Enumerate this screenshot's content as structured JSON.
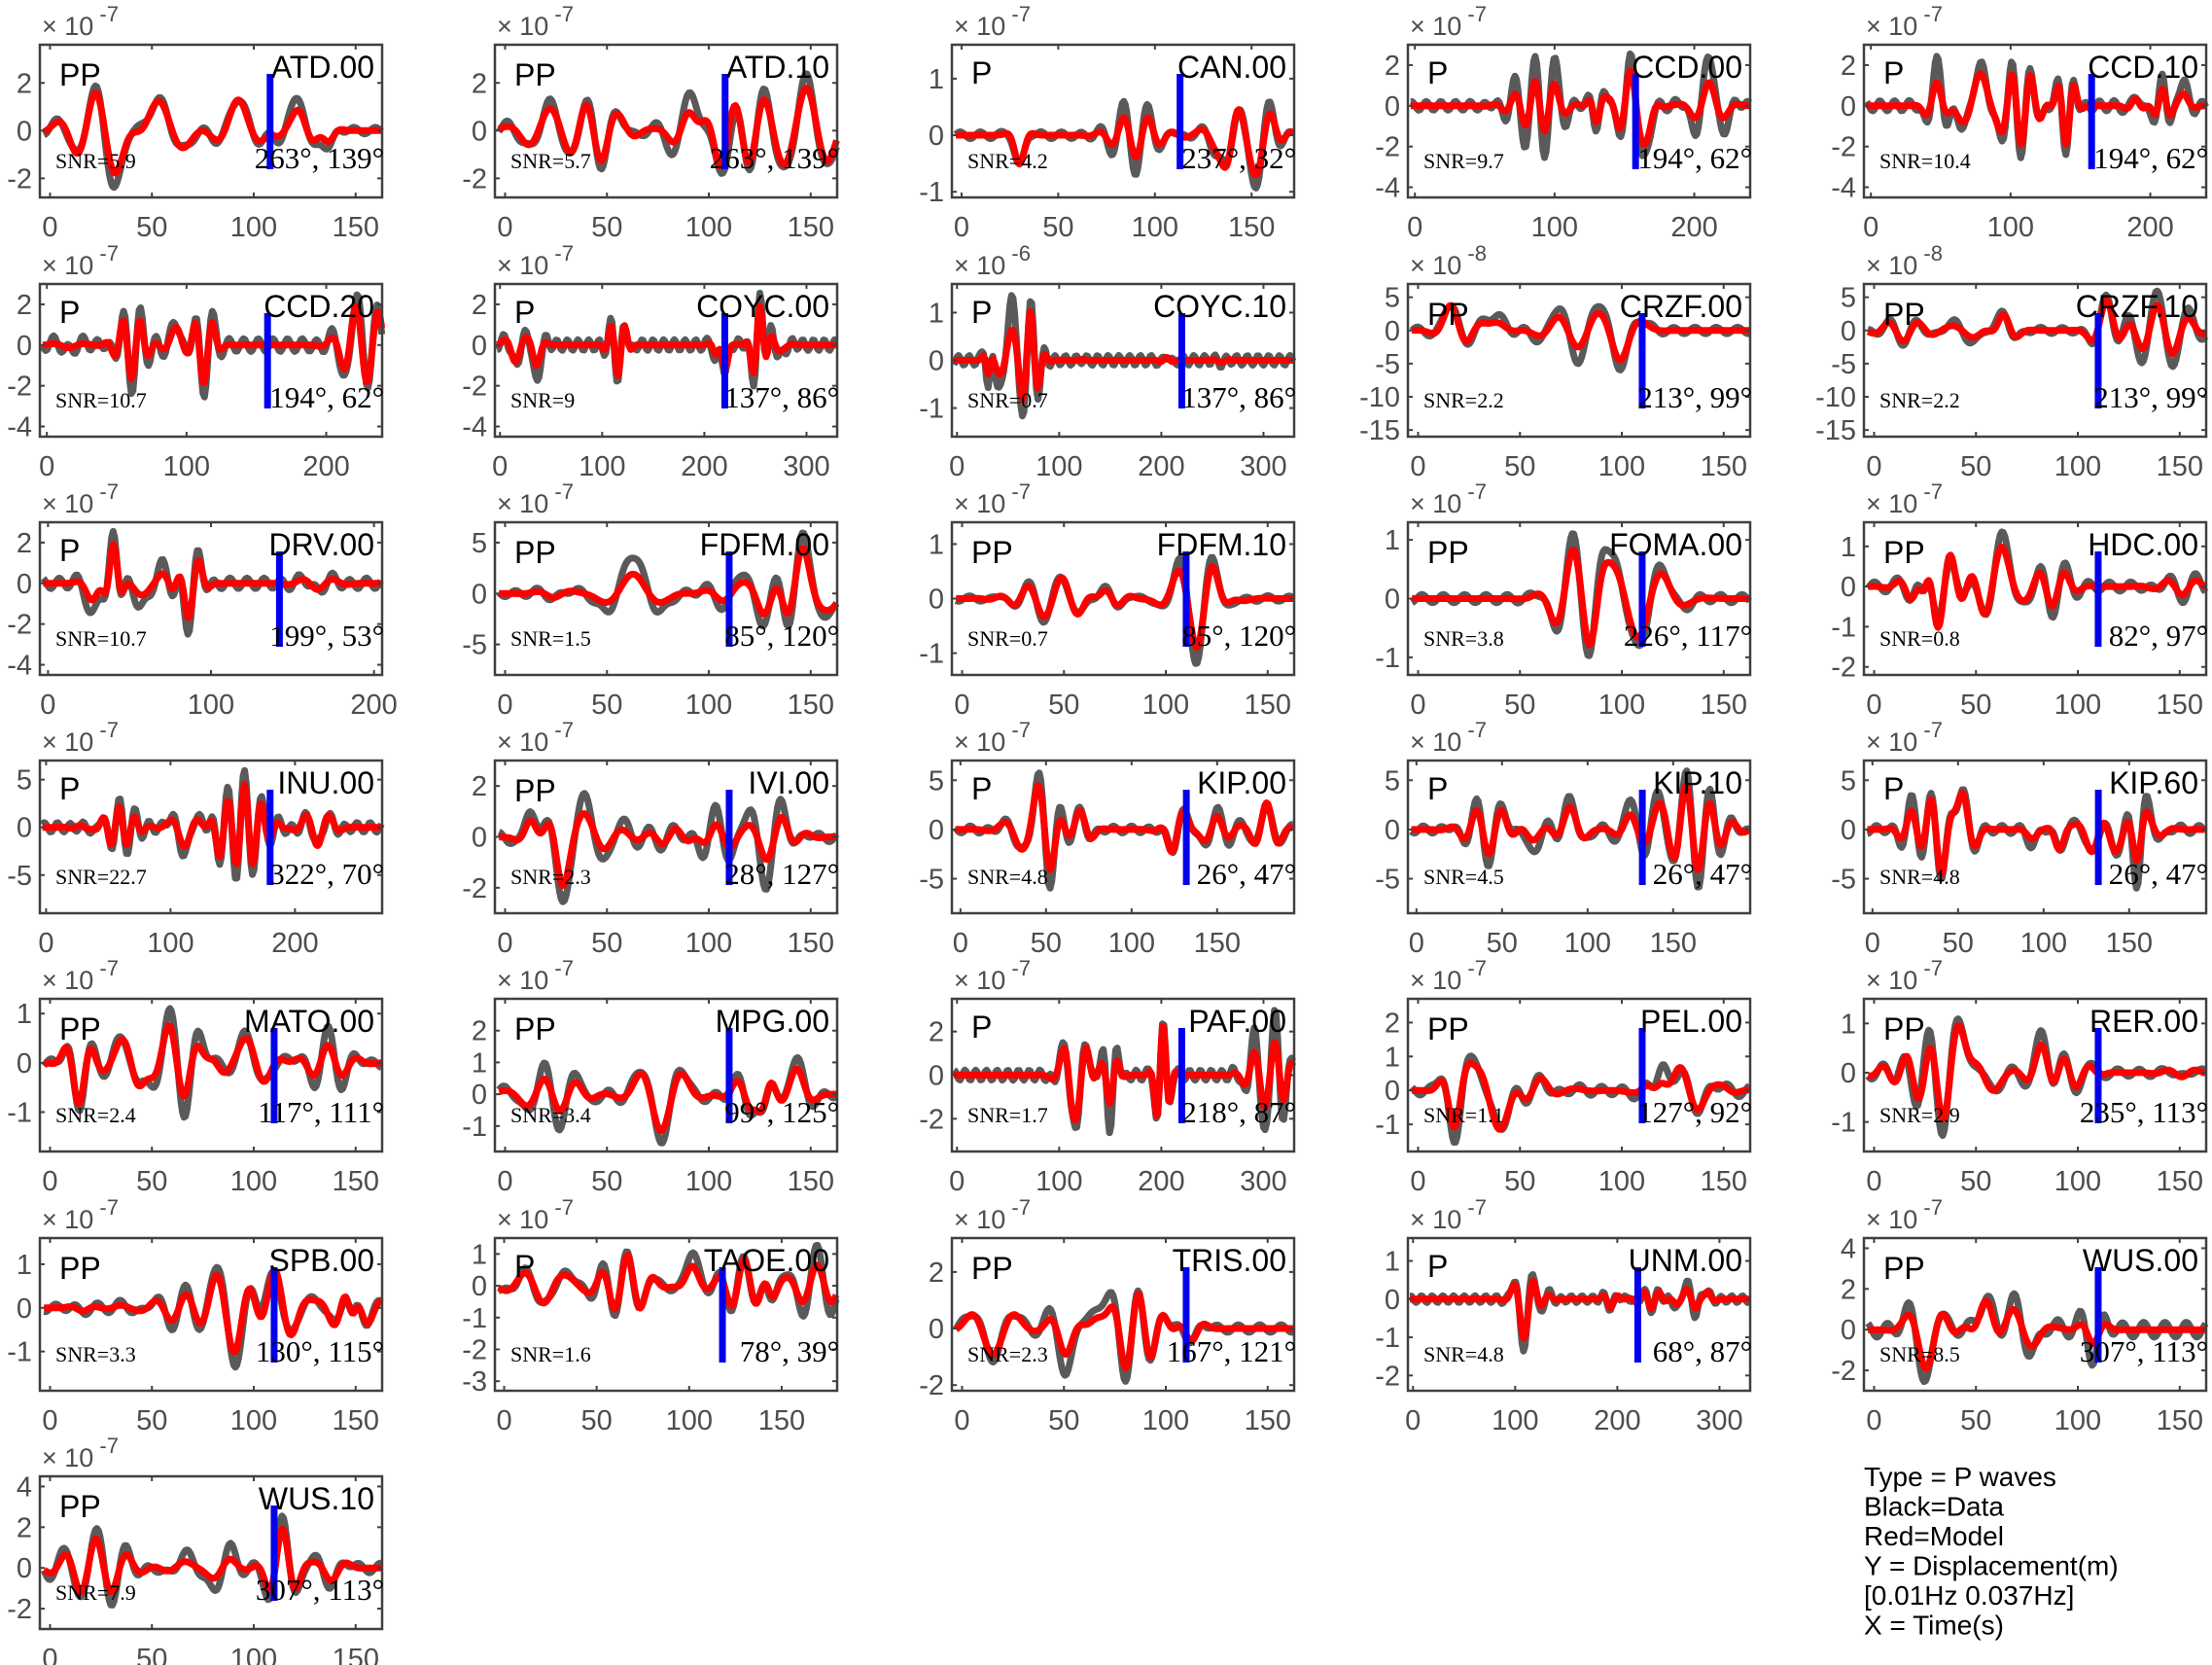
{
  "chart_data": {
    "type": "line",
    "colors": {
      "data": "#5a5a5a",
      "model": "#ff0000",
      "marker": "#0000ee",
      "axes": "#404040"
    },
    "series_names": [
      "Data",
      "Model"
    ],
    "xlabel": "Time(s)",
    "ylabel": "Displacement(m)",
    "legend": {
      "position": "bottom-right",
      "lines": [
        "Type = P waves",
        "Black=Data",
        "Red=Model",
        "Y = Displacement(m)",
        "    [0.01Hz 0.037Hz]",
        "X = Time(s)"
      ]
    },
    "panels": [
      {
        "station": "ATD.00",
        "phase": "PP",
        "snr": "SNR=5.9",
        "az": "263°, 139°",
        "exp": "-7",
        "xlim": [
          -5,
          163
        ],
        "xticks": [
          0,
          50,
          100,
          150
        ],
        "yticks": [
          -2,
          0,
          2
        ],
        "ylim": [
          -2.8,
          3.6
        ],
        "marker": 108
      },
      {
        "station": "ATD.10",
        "phase": "PP",
        "snr": "SNR=5.7",
        "az": "263°, 139°",
        "exp": "-7",
        "xlim": [
          -5,
          163
        ],
        "xticks": [
          0,
          50,
          100,
          150
        ],
        "yticks": [
          -2,
          0,
          2
        ],
        "ylim": [
          -2.8,
          3.6
        ],
        "marker": 108
      },
      {
        "station": "CAN.00",
        "phase": "P",
        "snr": "SNR=4.2",
        "az": "237°, 32°",
        "exp": "-7",
        "xlim": [
          -5,
          172
        ],
        "xticks": [
          0,
          50,
          100,
          150
        ],
        "yticks": [
          -1,
          0,
          1
        ],
        "ylim": [
          -1.1,
          1.6
        ],
        "marker": 113
      },
      {
        "station": "CCD.00",
        "phase": "P",
        "snr": "SNR=9.7",
        "az": "194°, 62°",
        "exp": "-7",
        "xlim": [
          -5,
          240
        ],
        "xticks": [
          0,
          100,
          200
        ],
        "yticks": [
          -4,
          -2,
          0,
          2
        ],
        "ylim": [
          -4.5,
          3
        ],
        "marker": 158
      },
      {
        "station": "CCD.10",
        "phase": "P",
        "snr": "SNR=10.4",
        "az": "194°, 62°",
        "exp": "-7",
        "xlim": [
          -5,
          240
        ],
        "xticks": [
          0,
          100,
          200
        ],
        "yticks": [
          -4,
          -2,
          0,
          2
        ],
        "ylim": [
          -4.5,
          3
        ],
        "marker": 158
      },
      {
        "station": "CCD.20",
        "phase": "P",
        "snr": "SNR=10.7",
        "az": "194°, 62°",
        "exp": "-7",
        "xlim": [
          -5,
          240
        ],
        "xticks": [
          0,
          100,
          200
        ],
        "yticks": [
          -4,
          -2,
          0,
          2
        ],
        "ylim": [
          -4.5,
          3
        ],
        "marker": 158
      },
      {
        "station": "COYC.00",
        "phase": "P",
        "snr": "SNR=9",
        "az": "137°, 86°",
        "exp": "-7",
        "xlim": [
          -5,
          330
        ],
        "xticks": [
          0,
          100,
          200,
          300
        ],
        "yticks": [
          -4,
          -2,
          0,
          2
        ],
        "ylim": [
          -4.5,
          3
        ],
        "marker": 220
      },
      {
        "station": "COYC.10",
        "phase": "P",
        "snr": "SNR=0.7",
        "az": "137°, 86°",
        "exp": "-6",
        "xlim": [
          -5,
          330
        ],
        "xticks": [
          0,
          100,
          200,
          300
        ],
        "yticks": [
          -1,
          0,
          1
        ],
        "ylim": [
          -1.6,
          1.6
        ],
        "marker": 220
      },
      {
        "station": "CRZF.00",
        "phase": "PP",
        "snr": "SNR=2.2",
        "az": "213°, 99°",
        "exp": "-8",
        "xlim": [
          -5,
          163
        ],
        "xticks": [
          0,
          50,
          100,
          150
        ],
        "yticks": [
          -15,
          -10,
          -5,
          0,
          5
        ],
        "ylim": [
          -16,
          7
        ],
        "marker": 110
      },
      {
        "station": "CRZF.10",
        "phase": "PP",
        "snr": "SNR=2.2",
        "az": "213°, 99°",
        "exp": "-8",
        "xlim": [
          -5,
          163
        ],
        "xticks": [
          0,
          50,
          100,
          150
        ],
        "yticks": [
          -15,
          -10,
          -5,
          0,
          5
        ],
        "ylim": [
          -16,
          7
        ],
        "marker": 110
      },
      {
        "station": "DRV.00",
        "phase": "P",
        "snr": "SNR=10.7",
        "az": "199°, 53°",
        "exp": "-7",
        "xlim": [
          -5,
          205
        ],
        "xticks": [
          0,
          100,
          200
        ],
        "yticks": [
          -4,
          -2,
          0,
          2
        ],
        "ylim": [
          -4.5,
          3
        ],
        "marker": 142
      },
      {
        "station": "FDFM.00",
        "phase": "PP",
        "snr": "SNR=1.5",
        "az": "85°, 120°",
        "exp": "-7",
        "xlim": [
          -5,
          163
        ],
        "xticks": [
          0,
          50,
          100,
          150
        ],
        "yticks": [
          -5,
          0,
          5
        ],
        "ylim": [
          -8,
          7
        ],
        "marker": 110
      },
      {
        "station": "FDFM.10",
        "phase": "PP",
        "snr": "SNR=0.7",
        "az": "85°, 120°",
        "exp": "-7",
        "xlim": [
          -5,
          163
        ],
        "xticks": [
          0,
          50,
          100,
          150
        ],
        "yticks": [
          -1,
          0,
          1
        ],
        "ylim": [
          -1.4,
          1.4
        ],
        "marker": 110
      },
      {
        "station": "FOMA.00",
        "phase": "PP",
        "snr": "SNR=3.8",
        "az": "226°, 117°",
        "exp": "-7",
        "xlim": [
          -5,
          163
        ],
        "xticks": [
          0,
          50,
          100,
          150
        ],
        "yticks": [
          -1,
          0,
          1
        ],
        "ylim": [
          -1.3,
          1.3
        ],
        "marker": 110
      },
      {
        "station": "HDC.00",
        "phase": "PP",
        "snr": "SNR=0.8",
        "az": "82°, 97°",
        "exp": "-7",
        "xlim": [
          -5,
          163
        ],
        "xticks": [
          0,
          50,
          100,
          150
        ],
        "yticks": [
          -2,
          -1,
          0,
          1
        ],
        "ylim": [
          -2.2,
          1.6
        ],
        "marker": 110
      },
      {
        "station": "INU.00",
        "phase": "P",
        "snr": "SNR=22.7",
        "az": "322°, 70°",
        "exp": "-7",
        "xlim": [
          -5,
          270
        ],
        "xticks": [
          0,
          100,
          200
        ],
        "yticks": [
          -5,
          0,
          5
        ],
        "ylim": [
          -9,
          7
        ],
        "marker": 180
      },
      {
        "station": "IVI.00",
        "phase": "PP",
        "snr": "SNR=2.3",
        "az": "28°, 127°",
        "exp": "-7",
        "xlim": [
          -5,
          163
        ],
        "xticks": [
          0,
          50,
          100,
          150
        ],
        "yticks": [
          -2,
          0,
          2
        ],
        "ylim": [
          -3,
          3
        ],
        "marker": 110
      },
      {
        "station": "KIP.00",
        "phase": "P",
        "snr": "SNR=4.8",
        "az": "26°, 47°",
        "exp": "-7",
        "xlim": [
          -5,
          195
        ],
        "xticks": [
          0,
          50,
          100,
          150
        ],
        "yticks": [
          -5,
          0,
          5
        ],
        "ylim": [
          -8.5,
          7
        ],
        "marker": 132
      },
      {
        "station": "KIP.10",
        "phase": "P",
        "snr": "SNR=4.5",
        "az": "26°, 47°",
        "exp": "-7",
        "xlim": [
          -5,
          195
        ],
        "xticks": [
          0,
          50,
          100,
          150
        ],
        "yticks": [
          -5,
          0,
          5
        ],
        "ylim": [
          -8.5,
          7
        ],
        "marker": 132
      },
      {
        "station": "KIP.60",
        "phase": "P",
        "snr": "SNR=4.8",
        "az": "26°, 47°",
        "exp": "-7",
        "xlim": [
          -5,
          195
        ],
        "xticks": [
          0,
          50,
          100,
          150
        ],
        "yticks": [
          -5,
          0,
          5
        ],
        "ylim": [
          -8.5,
          7
        ],
        "marker": 132
      },
      {
        "station": "MATO.00",
        "phase": "PP",
        "snr": "SNR=2.4",
        "az": "117°, 111°",
        "exp": "-7",
        "xlim": [
          -5,
          163
        ],
        "xticks": [
          0,
          50,
          100,
          150
        ],
        "yticks": [
          -1,
          0,
          1
        ],
        "ylim": [
          -1.8,
          1.3
        ],
        "marker": 110
      },
      {
        "station": "MPG.00",
        "phase": "PP",
        "snr": "SNR=3.4",
        "az": "99°, 125°",
        "exp": "-7",
        "xlim": [
          -5,
          163
        ],
        "xticks": [
          0,
          50,
          100,
          150
        ],
        "yticks": [
          -1,
          0,
          1,
          2
        ],
        "ylim": [
          -1.8,
          3
        ],
        "marker": 110
      },
      {
        "station": "PAF.00",
        "phase": "P",
        "snr": "SNR=1.7",
        "az": "218°, 87°",
        "exp": "-7",
        "xlim": [
          -5,
          330
        ],
        "xticks": [
          0,
          100,
          200,
          300
        ],
        "yticks": [
          -2,
          0,
          2
        ],
        "ylim": [
          -3.5,
          3.5
        ],
        "marker": 220
      },
      {
        "station": "PEL.00",
        "phase": "PP",
        "snr": "SNR=1.1",
        "az": "127°, 92°",
        "exp": "-7",
        "xlim": [
          -5,
          163
        ],
        "xticks": [
          0,
          50,
          100,
          150
        ],
        "yticks": [
          -1,
          0,
          1,
          2
        ],
        "ylim": [
          -1.8,
          2.7
        ],
        "marker": 110
      },
      {
        "station": "RER.00",
        "phase": "PP",
        "snr": "SNR=2.9",
        "az": "235°, 113°",
        "exp": "-7",
        "xlim": [
          -5,
          163
        ],
        "xticks": [
          0,
          50,
          100,
          150
        ],
        "yticks": [
          -1,
          0,
          1
        ],
        "ylim": [
          -1.6,
          1.5
        ],
        "marker": 110
      },
      {
        "station": "SPB.00",
        "phase": "PP",
        "snr": "SNR=3.3",
        "az": "130°, 115°",
        "exp": "-7",
        "xlim": [
          -5,
          163
        ],
        "xticks": [
          0,
          50,
          100,
          150
        ],
        "yticks": [
          -1,
          0,
          1
        ],
        "ylim": [
          -1.9,
          1.6
        ],
        "marker": 110
      },
      {
        "station": "TAOE.00",
        "phase": "P",
        "snr": "SNR=1.6",
        "az": "78°, 39°",
        "exp": "-7",
        "xlim": [
          -5,
          180
        ],
        "xticks": [
          0,
          50,
          100,
          150
        ],
        "yticks": [
          -3,
          -2,
          -1,
          0,
          1
        ],
        "ylim": [
          -3.3,
          1.5
        ],
        "marker": 118
      },
      {
        "station": "TRIS.00",
        "phase": "PP",
        "snr": "SNR=2.3",
        "az": "167°, 121°",
        "exp": "-7",
        "xlim": [
          -5,
          163
        ],
        "xticks": [
          0,
          50,
          100,
          150
        ],
        "yticks": [
          -2,
          0,
          2
        ],
        "ylim": [
          -2.2,
          3.2
        ],
        "marker": 110
      },
      {
        "station": "UNM.00",
        "phase": "P",
        "snr": "SNR=4.8",
        "az": "68°, 87°",
        "exp": "-7",
        "xlim": [
          -5,
          330
        ],
        "xticks": [
          0,
          100,
          200,
          300
        ],
        "yticks": [
          -2,
          -1,
          0,
          1
        ],
        "ylim": [
          -2.4,
          1.6
        ],
        "marker": 220
      },
      {
        "station": "WUS.00",
        "phase": "PP",
        "snr": "SNR=8.5",
        "az": "307°, 113°",
        "exp": "-7",
        "xlim": [
          -5,
          163
        ],
        "xticks": [
          0,
          50,
          100,
          150
        ],
        "yticks": [
          -2,
          0,
          2,
          4
        ],
        "ylim": [
          -3,
          4.5
        ],
        "marker": 110
      },
      {
        "station": "WUS.10",
        "phase": "PP",
        "snr": "SNR=7.9",
        "az": "307°, 113°",
        "exp": "-7",
        "xlim": [
          -5,
          163
        ],
        "xticks": [
          0,
          50,
          100,
          150
        ],
        "yticks": [
          -2,
          0,
          2,
          4
        ],
        "ylim": [
          -3,
          4.5
        ],
        "marker": 110
      }
    ]
  }
}
